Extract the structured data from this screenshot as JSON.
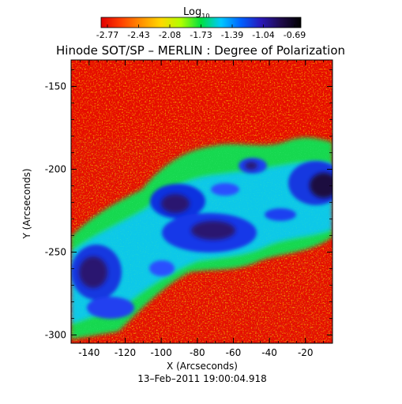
{
  "colorbar": {
    "label": "Log",
    "label_sub": "10",
    "ticks": [
      "-2.77",
      "-2.43",
      "-2.08",
      "-1.73",
      "-1.39",
      "-1.04",
      "-0.69"
    ],
    "colors": [
      "#e00000",
      "#ff4000",
      "#ff9000",
      "#ffd800",
      "#b0ff00",
      "#00e040",
      "#00c8ff",
      "#0060ff",
      "#2a18b8",
      "#1e0a4a",
      "#000000"
    ]
  },
  "plot": {
    "title": "Hinode SOT/SP – MERLIN : Degree of Polarization",
    "xlabel": "X (Arcseconds)",
    "ylabel": "Y (Arcseconds)",
    "xticks": [
      "-140",
      "-120",
      "-100",
      "-80",
      "-60",
      "-40",
      "-20"
    ],
    "yticks": [
      "-150",
      "-200",
      "-250",
      "-300"
    ],
    "timestamp": "13–Feb–2011 19:00:04.918"
  }
}
